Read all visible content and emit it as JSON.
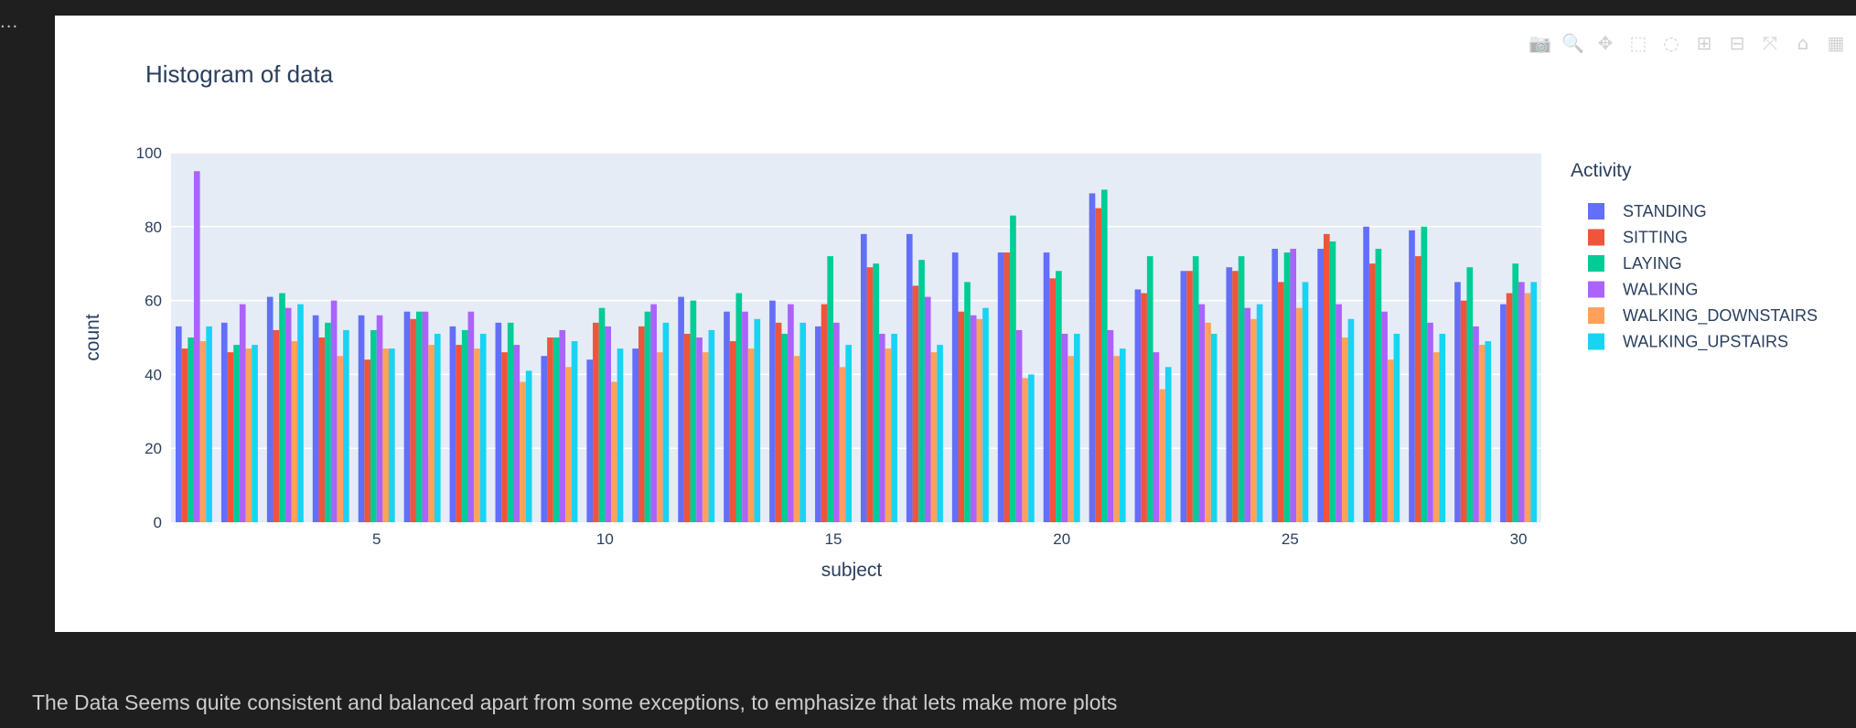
{
  "cell_marker": "...",
  "modebar": [
    {
      "name": "camera-icon",
      "glyph": "📷"
    },
    {
      "name": "zoom-icon",
      "glyph": "🔍"
    },
    {
      "name": "pan-icon",
      "glyph": "✥"
    },
    {
      "name": "box-select-icon",
      "glyph": "⬚"
    },
    {
      "name": "lasso-select-icon",
      "glyph": "◌"
    },
    {
      "name": "zoom-in-icon",
      "glyph": "⊞"
    },
    {
      "name": "zoom-out-icon",
      "glyph": "⊟"
    },
    {
      "name": "autoscale-icon",
      "glyph": "⤧"
    },
    {
      "name": "reset-axes-icon",
      "glyph": "⌂"
    },
    {
      "name": "plotly-logo-icon",
      "glyph": "▦"
    }
  ],
  "chart_data": {
    "type": "bar",
    "title": "Histogram of data",
    "xlabel": "subject",
    "ylabel": "count",
    "ylim": [
      0,
      100
    ],
    "yticks": [
      0,
      20,
      40,
      60,
      80,
      100
    ],
    "xticks": [
      5,
      10,
      15,
      20,
      25,
      30
    ],
    "grid": true,
    "legend_title": "Activity",
    "legend_position": "right",
    "categories": [
      1,
      2,
      3,
      4,
      5,
      6,
      7,
      8,
      9,
      10,
      11,
      12,
      13,
      14,
      15,
      16,
      17,
      18,
      19,
      20,
      21,
      22,
      23,
      24,
      25,
      26,
      27,
      28,
      29,
      30
    ],
    "series": [
      {
        "name": "STANDING",
        "color": "#636efa",
        "values": [
          53,
          54,
          61,
          56,
          56,
          57,
          53,
          54,
          45,
          44,
          47,
          61,
          57,
          60,
          53,
          78,
          78,
          73,
          73,
          73,
          89,
          63,
          68,
          69,
          74,
          74,
          80,
          79,
          65,
          59
        ]
      },
      {
        "name": "SITTING",
        "color": "#ef553b",
        "values": [
          47,
          46,
          52,
          50,
          44,
          55,
          48,
          46,
          50,
          54,
          53,
          51,
          49,
          54,
          59,
          69,
          64,
          57,
          73,
          66,
          85,
          62,
          68,
          68,
          65,
          78,
          70,
          72,
          60,
          62
        ]
      },
      {
        "name": "LAYING",
        "color": "#00cc96",
        "values": [
          50,
          48,
          62,
          54,
          52,
          57,
          52,
          54,
          50,
          58,
          57,
          60,
          62,
          51,
          72,
          70,
          71,
          65,
          83,
          68,
          90,
          72,
          72,
          72,
          73,
          76,
          74,
          80,
          69,
          70
        ]
      },
      {
        "name": "WALKING",
        "color": "#ab63fa",
        "values": [
          95,
          59,
          58,
          60,
          56,
          57,
          57,
          48,
          52,
          53,
          59,
          50,
          57,
          59,
          54,
          51,
          61,
          56,
          52,
          51,
          52,
          46,
          59,
          58,
          74,
          59,
          57,
          54,
          53,
          65
        ]
      },
      {
        "name": "WALKING_DOWNSTAIRS",
        "color": "#ffa15a",
        "values": [
          49,
          47,
          49,
          45,
          47,
          48,
          47,
          38,
          42,
          38,
          46,
          46,
          47,
          45,
          42,
          47,
          46,
          55,
          39,
          45,
          45,
          36,
          54,
          55,
          58,
          50,
          44,
          46,
          48,
          62
        ]
      },
      {
        "name": "WALKING_UPSTAIRS",
        "color": "#19d3f3",
        "values": [
          53,
          48,
          59,
          52,
          47,
          51,
          51,
          41,
          49,
          47,
          54,
          52,
          55,
          54,
          48,
          51,
          48,
          58,
          40,
          51,
          47,
          42,
          51,
          59,
          65,
          55,
          51,
          51,
          49,
          65
        ]
      }
    ]
  },
  "footer": {
    "text": "The Data Seems quite consistent and balanced apart from some exceptions, to emphasize that lets make more plots"
  }
}
